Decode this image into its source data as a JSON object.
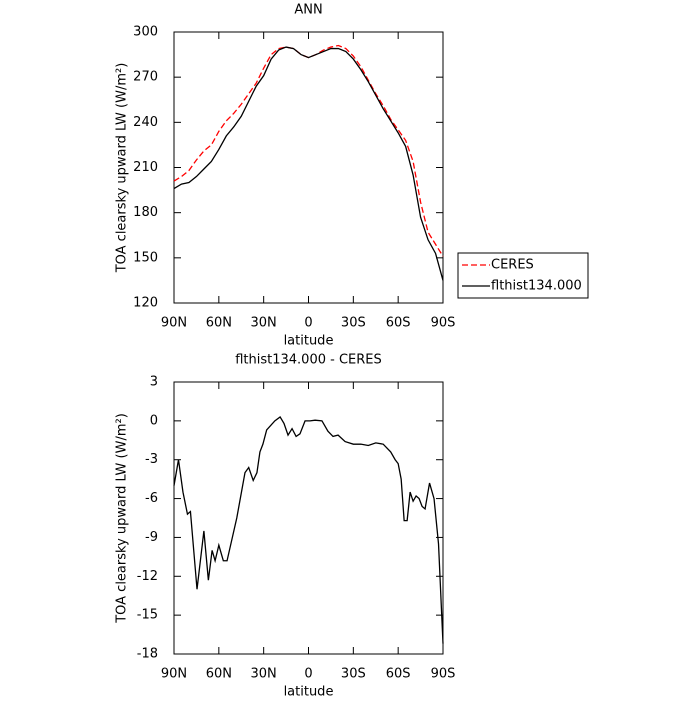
{
  "chart_data": [
    {
      "type": "line",
      "title": "ANN",
      "xlabel": "latitude",
      "ylabel": "TOA clearsky upward LW (W/m²)",
      "x": [
        90,
        85,
        80,
        75,
        70,
        65,
        60,
        55,
        50,
        45,
        40,
        35,
        30,
        25,
        20,
        15,
        10,
        5,
        0,
        -5,
        -10,
        -15,
        -20,
        -25,
        -30,
        -35,
        -40,
        -45,
        -50,
        -55,
        -60,
        -65,
        -70,
        -75,
        -80,
        -85,
        -90
      ],
      "series": [
        {
          "name": "CERES",
          "color": "#ff0000",
          "style": "dashed",
          "values": [
            201,
            204,
            208,
            215,
            221,
            225,
            234,
            241,
            246,
            252,
            259,
            266,
            276,
            285,
            289,
            290,
            289,
            285,
            283,
            285,
            288,
            290,
            291,
            289,
            284,
            277,
            268,
            259,
            251,
            242,
            235,
            228,
            214,
            187,
            167,
            159,
            151
          ]
        },
        {
          "name": "flthist134.000",
          "color": "#000000",
          "style": "solid",
          "values": [
            196,
            199,
            200,
            204,
            209,
            214,
            222,
            231,
            237,
            244,
            254,
            264,
            271,
            282,
            288,
            290,
            289,
            285,
            283,
            285,
            287,
            289,
            289,
            287,
            282,
            275,
            267,
            258,
            249,
            241,
            233,
            224,
            205,
            177,
            162,
            153,
            135
          ]
        }
      ],
      "xlim": [
        90,
        -90
      ],
      "xticks": [
        {
          "value": 90,
          "label": "90N"
        },
        {
          "value": 60,
          "label": "60N"
        },
        {
          "value": 30,
          "label": "30N"
        },
        0,
        {
          "value": -30,
          "label": "30S"
        },
        {
          "value": -60,
          "label": "60S"
        },
        {
          "value": -90,
          "label": "90S"
        }
      ],
      "ylim": [
        120,
        300
      ],
      "yticks": [
        120,
        150,
        180,
        210,
        240,
        270,
        300
      ],
      "legend_position": "outside right"
    },
    {
      "type": "line",
      "title": "flthist134.000 - CERES",
      "xlabel": "latitude",
      "ylabel": "TOA clearsky upward LW (W/m²)",
      "x": [
        90,
        87,
        84,
        81,
        79,
        74.6,
        70,
        67,
        64.5,
        62.5,
        60,
        57,
        54.5,
        48,
        42.5,
        40,
        37,
        34.5,
        32.5,
        30.5,
        28,
        22.5,
        19,
        16.4,
        13.7,
        11,
        8.3,
        5.7,
        2.3,
        -1,
        -4.4,
        -9,
        -13,
        -16.4,
        -19.8,
        -24.5,
        -30,
        -35,
        -40,
        -45,
        -50,
        -55,
        -58,
        -60,
        -62,
        -64,
        -66,
        -68,
        -70,
        -72,
        -74,
        -76,
        -78,
        -81,
        -84,
        -87,
        -90
      ],
      "color": "#000000",
      "values": [
        -5,
        -3,
        -5.5,
        -7.2,
        -7,
        -13,
        -8.5,
        -12.3,
        -10,
        -10.8,
        -9.6,
        -10.8,
        -10.8,
        -7.5,
        -4,
        -3.6,
        -4.6,
        -4,
        -2.4,
        -1.8,
        -0.7,
        0,
        0.3,
        -0.2,
        -1.1,
        -0.6,
        -1.2,
        -1,
        0,
        0,
        0.05,
        0,
        -0.8,
        -1.2,
        -1.1,
        -1.6,
        -1.8,
        -1.8,
        -1.9,
        -1.7,
        -1.8,
        -2.4,
        -3,
        -3.3,
        -4.5,
        -7.7,
        -7.7,
        -5.5,
        -6.2,
        -5.8,
        -6,
        -6.6,
        -6.8,
        -4.8,
        -6,
        -9.5,
        -17.2
      ],
      "xlim": [
        90,
        -90
      ],
      "xticks": [
        {
          "value": 90,
          "label": "90N"
        },
        {
          "value": 60,
          "label": "60N"
        },
        {
          "value": 30,
          "label": "30N"
        },
        0,
        {
          "value": -30,
          "label": "30S"
        },
        {
          "value": -60,
          "label": "60S"
        },
        {
          "value": -90,
          "label": "90S"
        }
      ],
      "ylim": [
        -18,
        3
      ],
      "yticks": [
        -18,
        -15,
        -12,
        -9,
        -6,
        -3,
        0,
        3
      ]
    }
  ]
}
